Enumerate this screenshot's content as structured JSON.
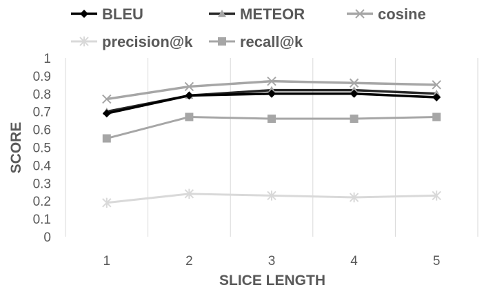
{
  "chart_data": {
    "type": "line",
    "title": "",
    "xlabel": "SLICE LENGTH",
    "ylabel": "SCORE",
    "categories": [
      "1",
      "2",
      "3",
      "4",
      "5"
    ],
    "ylim": [
      0,
      1
    ],
    "yticks": [
      "0",
      "0.1",
      "0.2",
      "0.3",
      "0.4",
      "0.5",
      "0.6",
      "0.7",
      "0.8",
      "0.9",
      "1"
    ],
    "grid": "vertical gridlines at each category",
    "legend_position": "top",
    "series": [
      {
        "name": "BLEU",
        "values": [
          0.69,
          0.79,
          0.8,
          0.8,
          0.78
        ],
        "color": "#000000",
        "marker": "diamond"
      },
      {
        "name": "METEOR",
        "values": [
          0.7,
          0.79,
          0.82,
          0.82,
          0.8
        ],
        "color": "#262626",
        "marker": "triangle"
      },
      {
        "name": "cosine",
        "values": [
          0.77,
          0.84,
          0.87,
          0.86,
          0.85
        ],
        "color": "#a6a6a6",
        "marker": "x"
      },
      {
        "name": "precision@k",
        "values": [
          0.19,
          0.24,
          0.23,
          0.22,
          0.23
        ],
        "color": "#d9d9d9",
        "marker": "star"
      },
      {
        "name": "recall@k",
        "values": [
          0.55,
          0.67,
          0.66,
          0.66,
          0.67
        ],
        "color": "#a6a6a6",
        "marker": "square"
      }
    ]
  }
}
